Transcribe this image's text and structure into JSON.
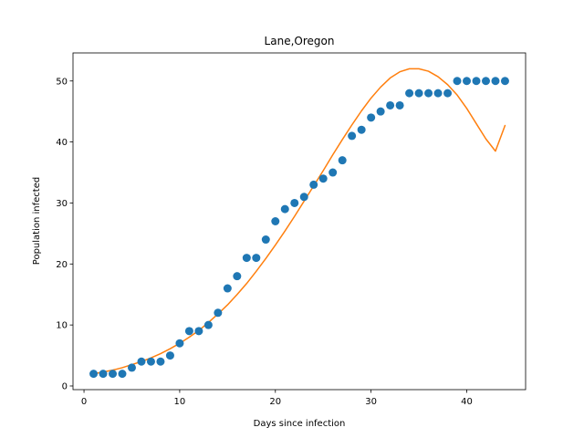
{
  "chart_data": {
    "type": "scatter",
    "title": "Lane,Oregon",
    "xlabel": "Days since infection",
    "ylabel": "Population infected",
    "xlim": [
      -1.15,
      46.15
    ],
    "ylim": [
      -0.6,
      54.6
    ],
    "xticks": [
      0,
      10,
      20,
      30,
      40
    ],
    "yticks": [
      0,
      10,
      20,
      30,
      40,
      50
    ],
    "grid": false,
    "series": [
      {
        "kind": "scatter",
        "color": "#1f77b4",
        "x": [
          1,
          2,
          3,
          4,
          5,
          6,
          7,
          8,
          9,
          10,
          11,
          12,
          13,
          14,
          15,
          16,
          17,
          18,
          19,
          20,
          21,
          22,
          23,
          24,
          25,
          26,
          27,
          28,
          29,
          30,
          31,
          32,
          33,
          34,
          35,
          36,
          37,
          38,
          39,
          40,
          41,
          42,
          43,
          44
        ],
        "y": [
          2,
          2,
          2,
          2,
          3,
          4,
          4,
          4,
          5,
          7,
          9,
          9,
          10,
          12,
          16,
          18,
          21,
          21,
          24,
          27,
          29,
          30,
          31,
          33,
          34,
          35,
          37,
          41,
          42,
          44,
          45,
          46,
          46,
          48,
          48,
          48,
          48,
          48,
          50,
          50,
          50,
          50,
          50,
          50
        ]
      },
      {
        "kind": "line",
        "color": "#ff7f0e",
        "x": [
          1,
          2,
          3,
          4,
          5,
          6,
          7,
          8,
          9,
          10,
          11,
          12,
          13,
          14,
          15,
          16,
          17,
          18,
          19,
          20,
          21,
          22,
          23,
          24,
          25,
          26,
          27,
          28,
          29,
          30,
          31,
          32,
          33,
          34,
          35,
          36,
          37,
          38,
          39,
          40,
          41,
          42,
          43,
          44
        ],
        "y": [
          2.0,
          2.3,
          2.6,
          3.0,
          3.5,
          4.0,
          4.6,
          5.3,
          6.1,
          7.0,
          8.0,
          9.1,
          10.4,
          11.8,
          13.3,
          15.0,
          16.8,
          18.8,
          20.9,
          23.1,
          25.4,
          27.8,
          30.3,
          32.8,
          35.3,
          37.9,
          40.4,
          42.8,
          45.1,
          47.2,
          49.0,
          50.5,
          51.5,
          52.0,
          52.0,
          51.6,
          50.7,
          49.4,
          47.7,
          45.5,
          43.0,
          40.5,
          38.5,
          42.7
        ]
      }
    ]
  }
}
